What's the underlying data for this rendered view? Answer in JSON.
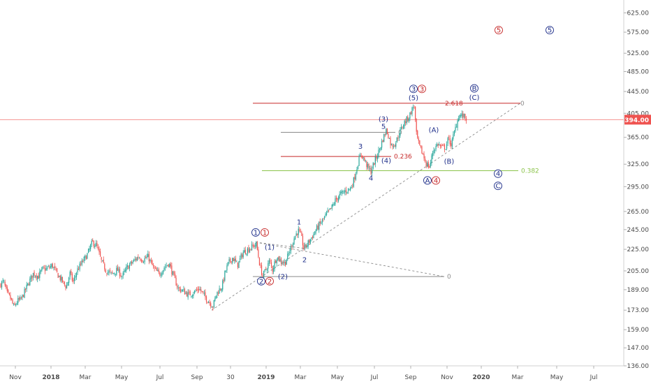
{
  "chart_data": {
    "type": "candlestick",
    "y_scale": "log",
    "ylim": [
      136,
      645
    ],
    "x_tick_labels": [
      "Nov",
      "2018",
      "Mar",
      "May",
      "Jul",
      "Sep",
      "30",
      "2019",
      "Mar",
      "May",
      "Jul",
      "Sep",
      "Nov",
      "2020",
      "Mar",
      "May",
      "Jul"
    ],
    "y_tick_labels": [
      "625.00",
      "575.00",
      "525.00",
      "485.00",
      "445.00",
      "405.00",
      "365.00",
      "325.00",
      "295.00",
      "265.00",
      "245.00",
      "225.00",
      "205.00",
      "189.00",
      "173.00",
      "159.00",
      "147.00",
      "136.00"
    ],
    "current_price": "394.00",
    "colors": {
      "up": "#26a69a",
      "down": "#ef5350",
      "wave_blue": "#1f2f8a",
      "wave_red": "#c62828",
      "fib_green": "#8bc34a",
      "level_red": "#c62828",
      "level_gray": "#8a8a8a",
      "price_line": "#ef5350"
    },
    "price_path": [
      [
        0,
        193
      ],
      [
        5,
        196
      ],
      [
        10,
        186
      ],
      [
        15,
        182
      ],
      [
        20,
        175
      ],
      [
        25,
        180
      ],
      [
        30,
        181
      ],
      [
        35,
        187
      ],
      [
        42,
        196
      ],
      [
        48,
        203
      ],
      [
        55,
        200
      ],
      [
        60,
        206
      ],
      [
        68,
        207
      ],
      [
        75,
        210
      ],
      [
        80,
        204
      ],
      [
        88,
        197
      ],
      [
        95,
        191
      ],
      [
        100,
        203
      ],
      [
        105,
        195
      ],
      [
        110,
        205
      ],
      [
        118,
        213
      ],
      [
        125,
        220
      ],
      [
        132,
        232
      ],
      [
        138,
        229
      ],
      [
        145,
        214
      ],
      [
        152,
        205
      ],
      [
        160,
        202
      ],
      [
        168,
        206
      ],
      [
        175,
        200
      ],
      [
        182,
        208
      ],
      [
        190,
        213
      ],
      [
        198,
        218
      ],
      [
        205,
        215
      ],
      [
        212,
        218
      ],
      [
        220,
        207
      ],
      [
        228,
        202
      ],
      [
        235,
        208
      ],
      [
        242,
        212
      ],
      [
        248,
        201
      ],
      [
        255,
        190
      ],
      [
        262,
        188
      ],
      [
        270,
        185
      ],
      [
        278,
        187
      ],
      [
        285,
        190
      ],
      [
        290,
        186
      ],
      [
        295,
        182
      ],
      [
        300,
        179
      ],
      [
        305,
        176
      ],
      [
        310,
        186
      ],
      [
        318,
        192
      ],
      [
        322,
        203
      ],
      [
        327,
        212
      ],
      [
        333,
        217
      ],
      [
        340,
        210
      ],
      [
        348,
        222
      ],
      [
        355,
        225
      ],
      [
        362,
        228
      ],
      [
        367,
        230
      ],
      [
        372,
        210
      ],
      [
        376,
        200
      ],
      [
        381,
        207
      ],
      [
        386,
        214
      ],
      [
        390,
        206
      ],
      [
        396,
        218
      ],
      [
        402,
        214
      ],
      [
        408,
        212
      ],
      [
        413,
        220
      ],
      [
        418,
        230
      ],
      [
        422,
        238
      ],
      [
        427,
        244
      ],
      [
        431,
        238
      ],
      [
        435,
        226
      ],
      [
        440,
        230
      ],
      [
        447,
        238
      ],
      [
        455,
        248
      ],
      [
        462,
        255
      ],
      [
        468,
        262
      ],
      [
        474,
        268
      ],
      [
        480,
        278
      ],
      [
        487,
        285
      ],
      [
        495,
        290
      ],
      [
        502,
        293
      ],
      [
        507,
        305
      ],
      [
        512,
        325
      ],
      [
        517,
        340
      ],
      [
        522,
        330
      ],
      [
        527,
        320
      ],
      [
        531,
        315
      ],
      [
        536,
        328
      ],
      [
        542,
        343
      ],
      [
        548,
        362
      ],
      [
        553,
        377
      ],
      [
        556,
        368
      ],
      [
        560,
        352
      ],
      [
        566,
        356
      ],
      [
        572,
        372
      ],
      [
        578,
        388
      ],
      [
        585,
        398
      ],
      [
        590,
        412
      ],
      [
        593,
        420
      ],
      [
        596,
        370
      ],
      [
        600,
        352
      ],
      [
        605,
        340
      ],
      [
        610,
        326
      ],
      [
        615,
        321
      ],
      [
        620,
        345
      ],
      [
        627,
        355
      ],
      [
        632,
        349
      ],
      [
        638,
        350
      ],
      [
        642,
        363
      ],
      [
        646,
        354
      ],
      [
        652,
        380
      ],
      [
        657,
        402
      ],
      [
        663,
        400
      ],
      [
        668,
        396
      ]
    ],
    "levels": [
      {
        "name": "fib-2618",
        "y": 423,
        "x0": 362,
        "x1": 745,
        "color": "level_red",
        "label": "2.618"
      },
      {
        "name": "gray-upper",
        "y": 373,
        "x0": 402,
        "x1": 566,
        "color": "level_gray",
        "label": "0"
      },
      {
        "name": "fib-0236",
        "y": 336,
        "x0": 402,
        "x1": 560,
        "color": "level_red",
        "label": "0.236"
      },
      {
        "name": "fib-0382",
        "y": 316,
        "x0": 375,
        "x1": 742,
        "color": "fib_green",
        "label": "0.382"
      },
      {
        "name": "gray-lower",
        "y": 200,
        "x0": 362,
        "x1": 636,
        "color": "level_gray",
        "label": "0"
      }
    ],
    "level_extra_label": {
      "text": "0",
      "y": 423
    },
    "dashed_lines": [
      {
        "name": "trend-upper",
        "p0": [
          303,
          173
        ],
        "p1": [
          745,
          423
        ]
      },
      {
        "name": "trend-lower",
        "p0": [
          366,
          232
        ],
        "p1": [
          636,
          200
        ]
      },
      {
        "name": "trend-mid",
        "p0": [
          366,
          232
        ],
        "p1": [
          435,
          226
        ]
      }
    ],
    "wave_labels": [
      {
        "t": "1",
        "x": 366,
        "y": 242,
        "c": "wave_blue",
        "circle": true
      },
      {
        "t": "1",
        "x": 379,
        "y": 242,
        "c": "wave_red",
        "circle": true
      },
      {
        "t": "(1)",
        "x": 386,
        "y": 227,
        "c": "wave_blue",
        "circle": false
      },
      {
        "t": "2",
        "x": 374,
        "y": 196,
        "c": "wave_blue",
        "circle": true
      },
      {
        "t": "2",
        "x": 386,
        "y": 196,
        "c": "wave_red",
        "circle": true
      },
      {
        "t": "(2)",
        "x": 405,
        "y": 200,
        "c": "wave_blue",
        "circle": false
      },
      {
        "t": "1",
        "x": 428,
        "y": 253,
        "c": "wave_blue",
        "circle": false
      },
      {
        "t": "2",
        "x": 436,
        "y": 215,
        "c": "wave_blue",
        "circle": false
      },
      {
        "t": "3",
        "x": 516,
        "y": 351,
        "c": "wave_blue",
        "circle": false
      },
      {
        "t": "4",
        "x": 531,
        "y": 306,
        "c": "wave_blue",
        "circle": false
      },
      {
        "t": "(3)",
        "x": 549,
        "y": 395,
        "c": "wave_blue",
        "circle": false
      },
      {
        "t": "5",
        "x": 549,
        "y": 383,
        "c": "wave_blue",
        "circle": false
      },
      {
        "t": "(4)",
        "x": 553,
        "y": 330,
        "c": "wave_blue",
        "circle": false
      },
      {
        "t": "3",
        "x": 592,
        "y": 450,
        "c": "wave_blue",
        "circle": true
      },
      {
        "t": "3",
        "x": 604,
        "y": 450,
        "c": "wave_red",
        "circle": true
      },
      {
        "t": "(5)",
        "x": 592,
        "y": 433,
        "c": "wave_blue",
        "circle": false
      },
      {
        "t": "A",
        "x": 612,
        "y": 303,
        "c": "wave_blue",
        "circle": true
      },
      {
        "t": "4",
        "x": 624,
        "y": 303,
        "c": "wave_red",
        "circle": true
      },
      {
        "t": "(A)",
        "x": 621,
        "y": 377,
        "c": "wave_blue",
        "circle": false
      },
      {
        "t": "(B)",
        "x": 643,
        "y": 329,
        "c": "wave_blue",
        "circle": false
      },
      {
        "t": "B",
        "x": 679,
        "y": 451,
        "c": "wave_blue",
        "circle": true
      },
      {
        "t": "(C)",
        "x": 679,
        "y": 434,
        "c": "wave_blue",
        "circle": false
      },
      {
        "t": "4",
        "x": 713,
        "y": 312,
        "c": "wave_blue",
        "circle": true
      },
      {
        "t": "C",
        "x": 713,
        "y": 296,
        "c": "wave_blue",
        "circle": true
      },
      {
        "t": "5",
        "x": 714,
        "y": 580,
        "c": "wave_red",
        "circle": true
      },
      {
        "t": "5",
        "x": 787,
        "y": 580,
        "c": "wave_blue",
        "circle": true
      }
    ]
  }
}
